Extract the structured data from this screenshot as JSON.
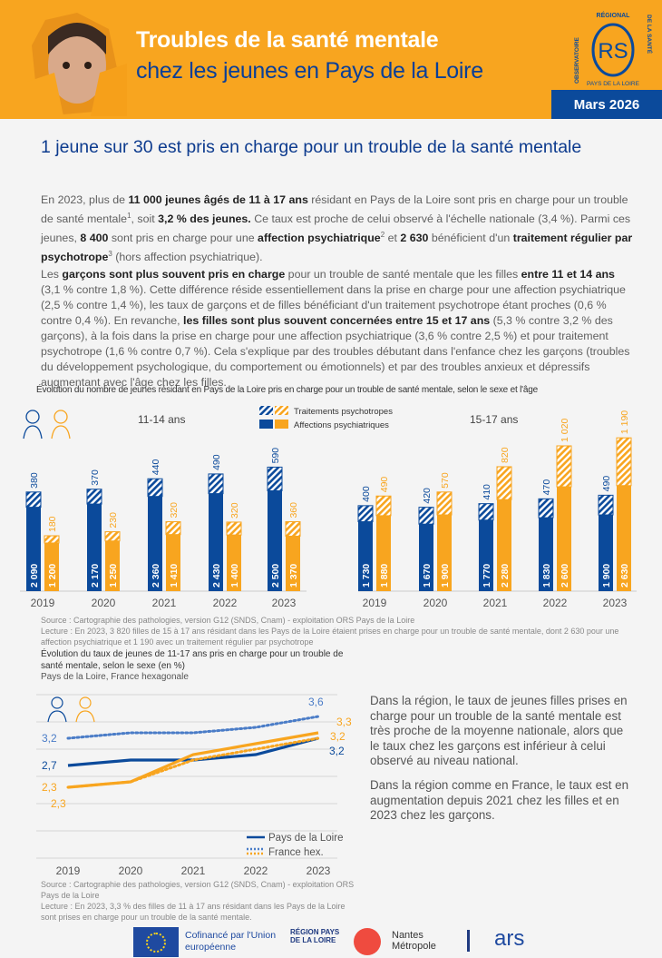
{
  "header": {
    "title_line1": "Troubles de la santé mentale",
    "title_line2": "chez les jeunes en Pays de la Loire",
    "date": "Mars 2026",
    "logo": {
      "text_top": "RÉGIONAL",
      "text_left": "OBSERVATOIRE",
      "text_right": "DE LA SANTÉ",
      "text_bottom": "PAYS DE LA LOIRE",
      "mark": "RS"
    }
  },
  "main": {
    "heading": "1 jeune sur 30 est pris en charge pour un trouble de la santé mentale",
    "paragraphs": [
      [
        {
          "t": "En 2023, plus de "
        },
        {
          "t": "11 000 jeunes âgés de 11 à 17 ans",
          "b": 1
        },
        {
          "t": " résidant en Pays de la Loire sont pris en charge pour un trouble de santé mentale"
        },
        {
          "t": "1",
          "sup": 1
        },
        {
          "t": ", soit "
        },
        {
          "t": "3,2 % des jeunes.",
          "b": 1
        },
        {
          "t": " Ce taux est proche de celui observé à l'échelle nationale (3,4 %). Parmi ces jeunes, "
        },
        {
          "t": "8 400",
          "b": 1
        },
        {
          "t": " sont pris en charge pour une "
        },
        {
          "t": "affection psychiatrique",
          "b": 1
        },
        {
          "t": "2",
          "sup": 1
        },
        {
          "t": " et "
        },
        {
          "t": "2 630",
          "b": 1
        },
        {
          "t": " bénéficient d'un "
        },
        {
          "t": "traitement régulier par psychotrope",
          "b": 1
        },
        {
          "t": "3",
          "sup": 1
        },
        {
          "t": " (hors affection psychiatrique)."
        }
      ],
      [
        {
          "t": "Les "
        },
        {
          "t": "garçons sont plus souvent pris en charge",
          "b": 1
        },
        {
          "t": " pour un trouble de santé mentale que les filles "
        },
        {
          "t": "entre 11 et 14 ans",
          "b": 1
        },
        {
          "t": " (3,1 % contre 1,8 %). Cette différence réside essentiellement dans la prise en charge pour une affection psychiatrique (2,5 % contre 1,4 %), les taux de garçons et de filles bénéficiant d'un traitement psychotrope étant proches (0,6 % contre 0,4 %). En revanche, "
        },
        {
          "t": "les filles sont plus souvent concernées entre 15 et 17 ans",
          "b": 1
        },
        {
          "t": " (5,3 % contre 3,2 % des garçons), à la fois dans la prise en charge pour une affection psychiatrique (3,6 % contre 2,5 %) et pour traitement psychotrope (1,6 % contre 0,7 %). Cela s'explique par des troubles débutant dans l'enfance chez les garçons (troubles du développement psychologique, du comportement ou émotionnels) et par des troubles anxieux et dépressifs augmentant avec l'âge chez les filles."
        }
      ]
    ],
    "side_paragraphs": [
      "Dans la région, le taux de jeunes filles prises en charge pour un trouble de la santé mentale est très proche de la moyenne nationale, alors que le taux chez les garçons est inférieur à celui observé au niveau national.",
      "Dans la région comme en France, le taux est en augmentation depuis 2021 chez les filles et en 2023 chez les garçons."
    ]
  },
  "colors": {
    "boys": "#0b4a9b",
    "girls": "#f8a51f",
    "heading": "#0d3b8e"
  },
  "chart_data": [
    {
      "type": "bar",
      "stacked": true,
      "title": "Évolution du nombre de jeunes résidant en Pays de la Loire pris en charge pour un trouble de santé mentale, selon le sexe et l'âge",
      "legend": [
        "Traitements psychotropes",
        "Affections psychiatriques"
      ],
      "categories": [
        "2019",
        "2020",
        "2021",
        "2022",
        "2023"
      ],
      "panels": [
        {
          "name": "11-14 ans",
          "boys": {
            "affections": [
              2090,
              2170,
              2360,
              2430,
              2500
            ],
            "traitements": [
              380,
              370,
              440,
              490,
              590
            ]
          },
          "girls": {
            "affections": [
              1200,
              1250,
              1410,
              1400,
              1370
            ],
            "traitements": [
              180,
              230,
              320,
              320,
              360
            ]
          }
        },
        {
          "name": "15-17 ans",
          "boys": {
            "affections": [
              1730,
              1670,
              1770,
              1830,
              1900
            ],
            "traitements": [
              400,
              420,
              410,
              470,
              490
            ]
          },
          "girls": {
            "affections": [
              1880,
              1900,
              2280,
              2600,
              2630
            ],
            "traitements": [
              490,
              570,
              820,
              1020,
              1190
            ]
          }
        }
      ],
      "source": "Source : Cartographie des pathologies, version G12 (SNDS, Cnam) - exploitation ORS Pays de la Loire",
      "note": "Lecture : En 2023, 3 820 filles de 15 à 17 ans résidant dans les Pays de la Loire étaient prises en charge pour un trouble de santé mentale, dont 2 630 pour une affection psychiatrique et 1 190 avec un traitement régulier par psychotrope"
    },
    {
      "type": "line",
      "title": "Évolution du taux de jeunes de 11-17 ans pris en charge pour un trouble de santé mentale, selon le sexe (en %)",
      "subtitle": "Pays de la Loire, France hexagonale",
      "x": [
        "2019",
        "2020",
        "2021",
        "2022",
        "2023"
      ],
      "ylim": [
        1,
        4
      ],
      "grid": true,
      "legend": [
        "Pays de la Loire",
        "France hex."
      ],
      "series": [
        {
          "sex": "boys",
          "area": "Pays de la Loire",
          "values": [
            2.7,
            2.8,
            2.8,
            2.9,
            3.2
          ],
          "labels": [
            "2,7",
            "",
            "",
            "",
            "3,2"
          ]
        },
        {
          "sex": "girls",
          "area": "Pays de la Loire",
          "values": [
            2.3,
            2.4,
            2.9,
            3.1,
            3.3
          ],
          "labels": [
            "2,3",
            "",
            "",
            "",
            "3,3"
          ]
        },
        {
          "sex": "boys",
          "area": "France hex.",
          "values": [
            3.2,
            3.3,
            3.3,
            3.4,
            3.6
          ],
          "labels": [
            "3,2",
            "",
            "",
            "",
            "3,6"
          ]
        },
        {
          "sex": "girls",
          "area": "France hex.",
          "values": [
            2.3,
            2.4,
            2.8,
            3.0,
            3.2
          ],
          "labels": [
            "2,3",
            "",
            "",
            "",
            "3,2"
          ]
        }
      ],
      "source": "Source : Cartographie des pathologies, version G12 (SNDS, Cnam) - exploitation ORS Pays de la Loire",
      "note": "Lecture : En 2023, 3,3 % des filles de 11 à 17 ans résidant dans les Pays de la Loire sont prises en charge pour un trouble de la santé mentale."
    }
  ],
  "footer": {
    "eu": "Cofinancé par l'Union européenne",
    "region": "RÉGION PAYS DE LA LOIRE",
    "nantes": "Nantes Métropole",
    "ars": "ars"
  }
}
